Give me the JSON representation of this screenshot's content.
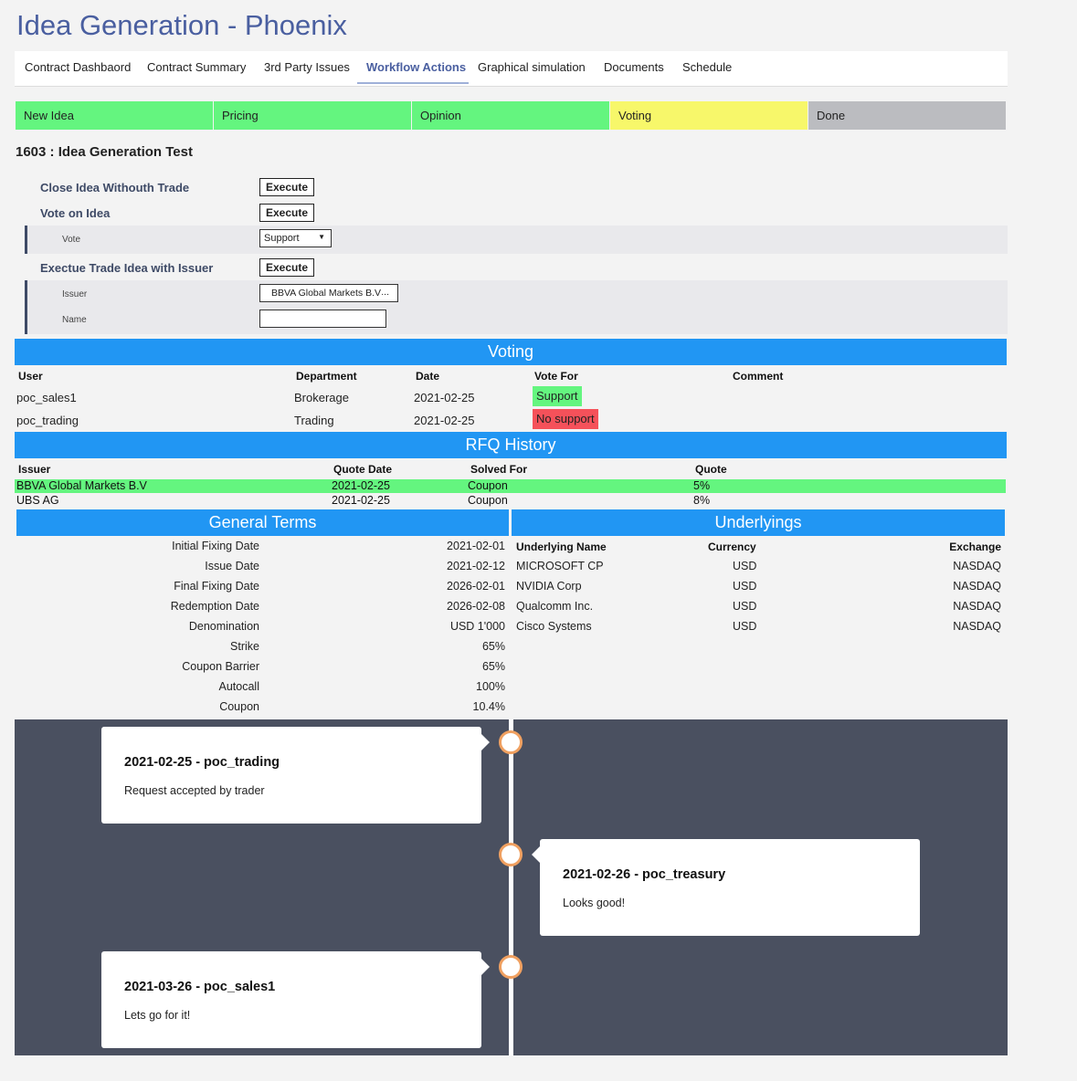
{
  "app_title": "Idea Generation - Phoenix",
  "tabs": [
    {
      "label": "Contract Dashbaord"
    },
    {
      "label": "Contract Summary"
    },
    {
      "label": "3rd Party Issues"
    },
    {
      "label": "Workflow Actions",
      "active": true
    },
    {
      "label": "Graphical simulation"
    },
    {
      "label": "Documents"
    },
    {
      "label": "Schedule"
    }
  ],
  "stages": [
    {
      "label": "New Idea",
      "color": "#64f57f"
    },
    {
      "label": "Pricing",
      "color": "#64f57f"
    },
    {
      "label": "Opinion",
      "color": "#64f57f"
    },
    {
      "label": "Voting",
      "color": "#f7f76a"
    },
    {
      "label": "Done",
      "color": "#bbbcc0"
    }
  ],
  "contract_heading": "1603 : Idea Generation Test",
  "actions": {
    "close_idea": "Close Idea Withouth Trade",
    "vote_on_idea": "Vote on Idea",
    "vote_label": "Vote",
    "vote_value": "Support",
    "execute_trade": "Exectue Trade Idea with Issuer",
    "issuer_label": "Issuer",
    "issuer_value": "BBVA Global Markets B.V",
    "issuer_more": "...",
    "name_label": "Name",
    "name_value": "",
    "execute_label": "Execute"
  },
  "voting": {
    "title": "Voting",
    "headers": [
      "User",
      "Department",
      "Date",
      "Vote For",
      "Comment"
    ],
    "rows": [
      {
        "user": "poc_sales1",
        "department": "Brokerage",
        "date": "2021-02-25",
        "vote": "Support",
        "vote_color": "#64f57f"
      },
      {
        "user": "poc_trading",
        "department": "Trading",
        "date": "2021-02-25",
        "vote": "No support",
        "vote_color": "#f5515a"
      }
    ]
  },
  "rfq": {
    "title": "RFQ History",
    "headers": [
      "Issuer",
      "Quote Date",
      "Solved For",
      "Quote"
    ],
    "rows": [
      {
        "issuer": "BBVA Global Markets B.V",
        "date": "2021-02-25",
        "solved": "Coupon",
        "quote": "5%",
        "highlight": "#64f57f"
      },
      {
        "issuer": "UBS AG",
        "date": "2021-02-25",
        "solved": "Coupon",
        "quote": "8%"
      }
    ]
  },
  "general_terms": {
    "title": "General Terms",
    "rows": [
      {
        "label": "Initial Fixing Date",
        "value": "2021-02-01"
      },
      {
        "label": "Issue Date",
        "value": "2021-02-12"
      },
      {
        "label": "Final Fixing Date",
        "value": "2026-02-01"
      },
      {
        "label": "Redemption Date",
        "value": "2026-02-08"
      },
      {
        "label": "Denomination",
        "value": "USD 1'000"
      },
      {
        "label": "Strike",
        "value": "65%"
      },
      {
        "label": "Coupon Barrier",
        "value": "65%"
      },
      {
        "label": "Autocall",
        "value": "100%"
      },
      {
        "label": "Coupon",
        "value": "10.4%"
      }
    ]
  },
  "underlyings": {
    "title": "Underlyings",
    "headers": [
      "Underlying Name",
      "Currency",
      "Exchange"
    ],
    "rows": [
      {
        "name": "MICROSOFT CP",
        "currency": "USD",
        "exchange": "NASDAQ"
      },
      {
        "name": "NVIDIA Corp",
        "currency": "USD",
        "exchange": "NASDAQ"
      },
      {
        "name": "Qualcomm Inc.",
        "currency": "USD",
        "exchange": "NASDAQ"
      },
      {
        "name": "Cisco Systems",
        "currency": "USD",
        "exchange": "NASDAQ"
      }
    ]
  },
  "timeline": [
    {
      "title": "2021-02-25 - poc_trading",
      "body": "Request accepted by trader"
    },
    {
      "title": "2021-02-26 - poc_treasury",
      "body": "Looks good!"
    },
    {
      "title": "2021-03-26 - poc_sales1",
      "body": "Lets go for it!"
    }
  ]
}
